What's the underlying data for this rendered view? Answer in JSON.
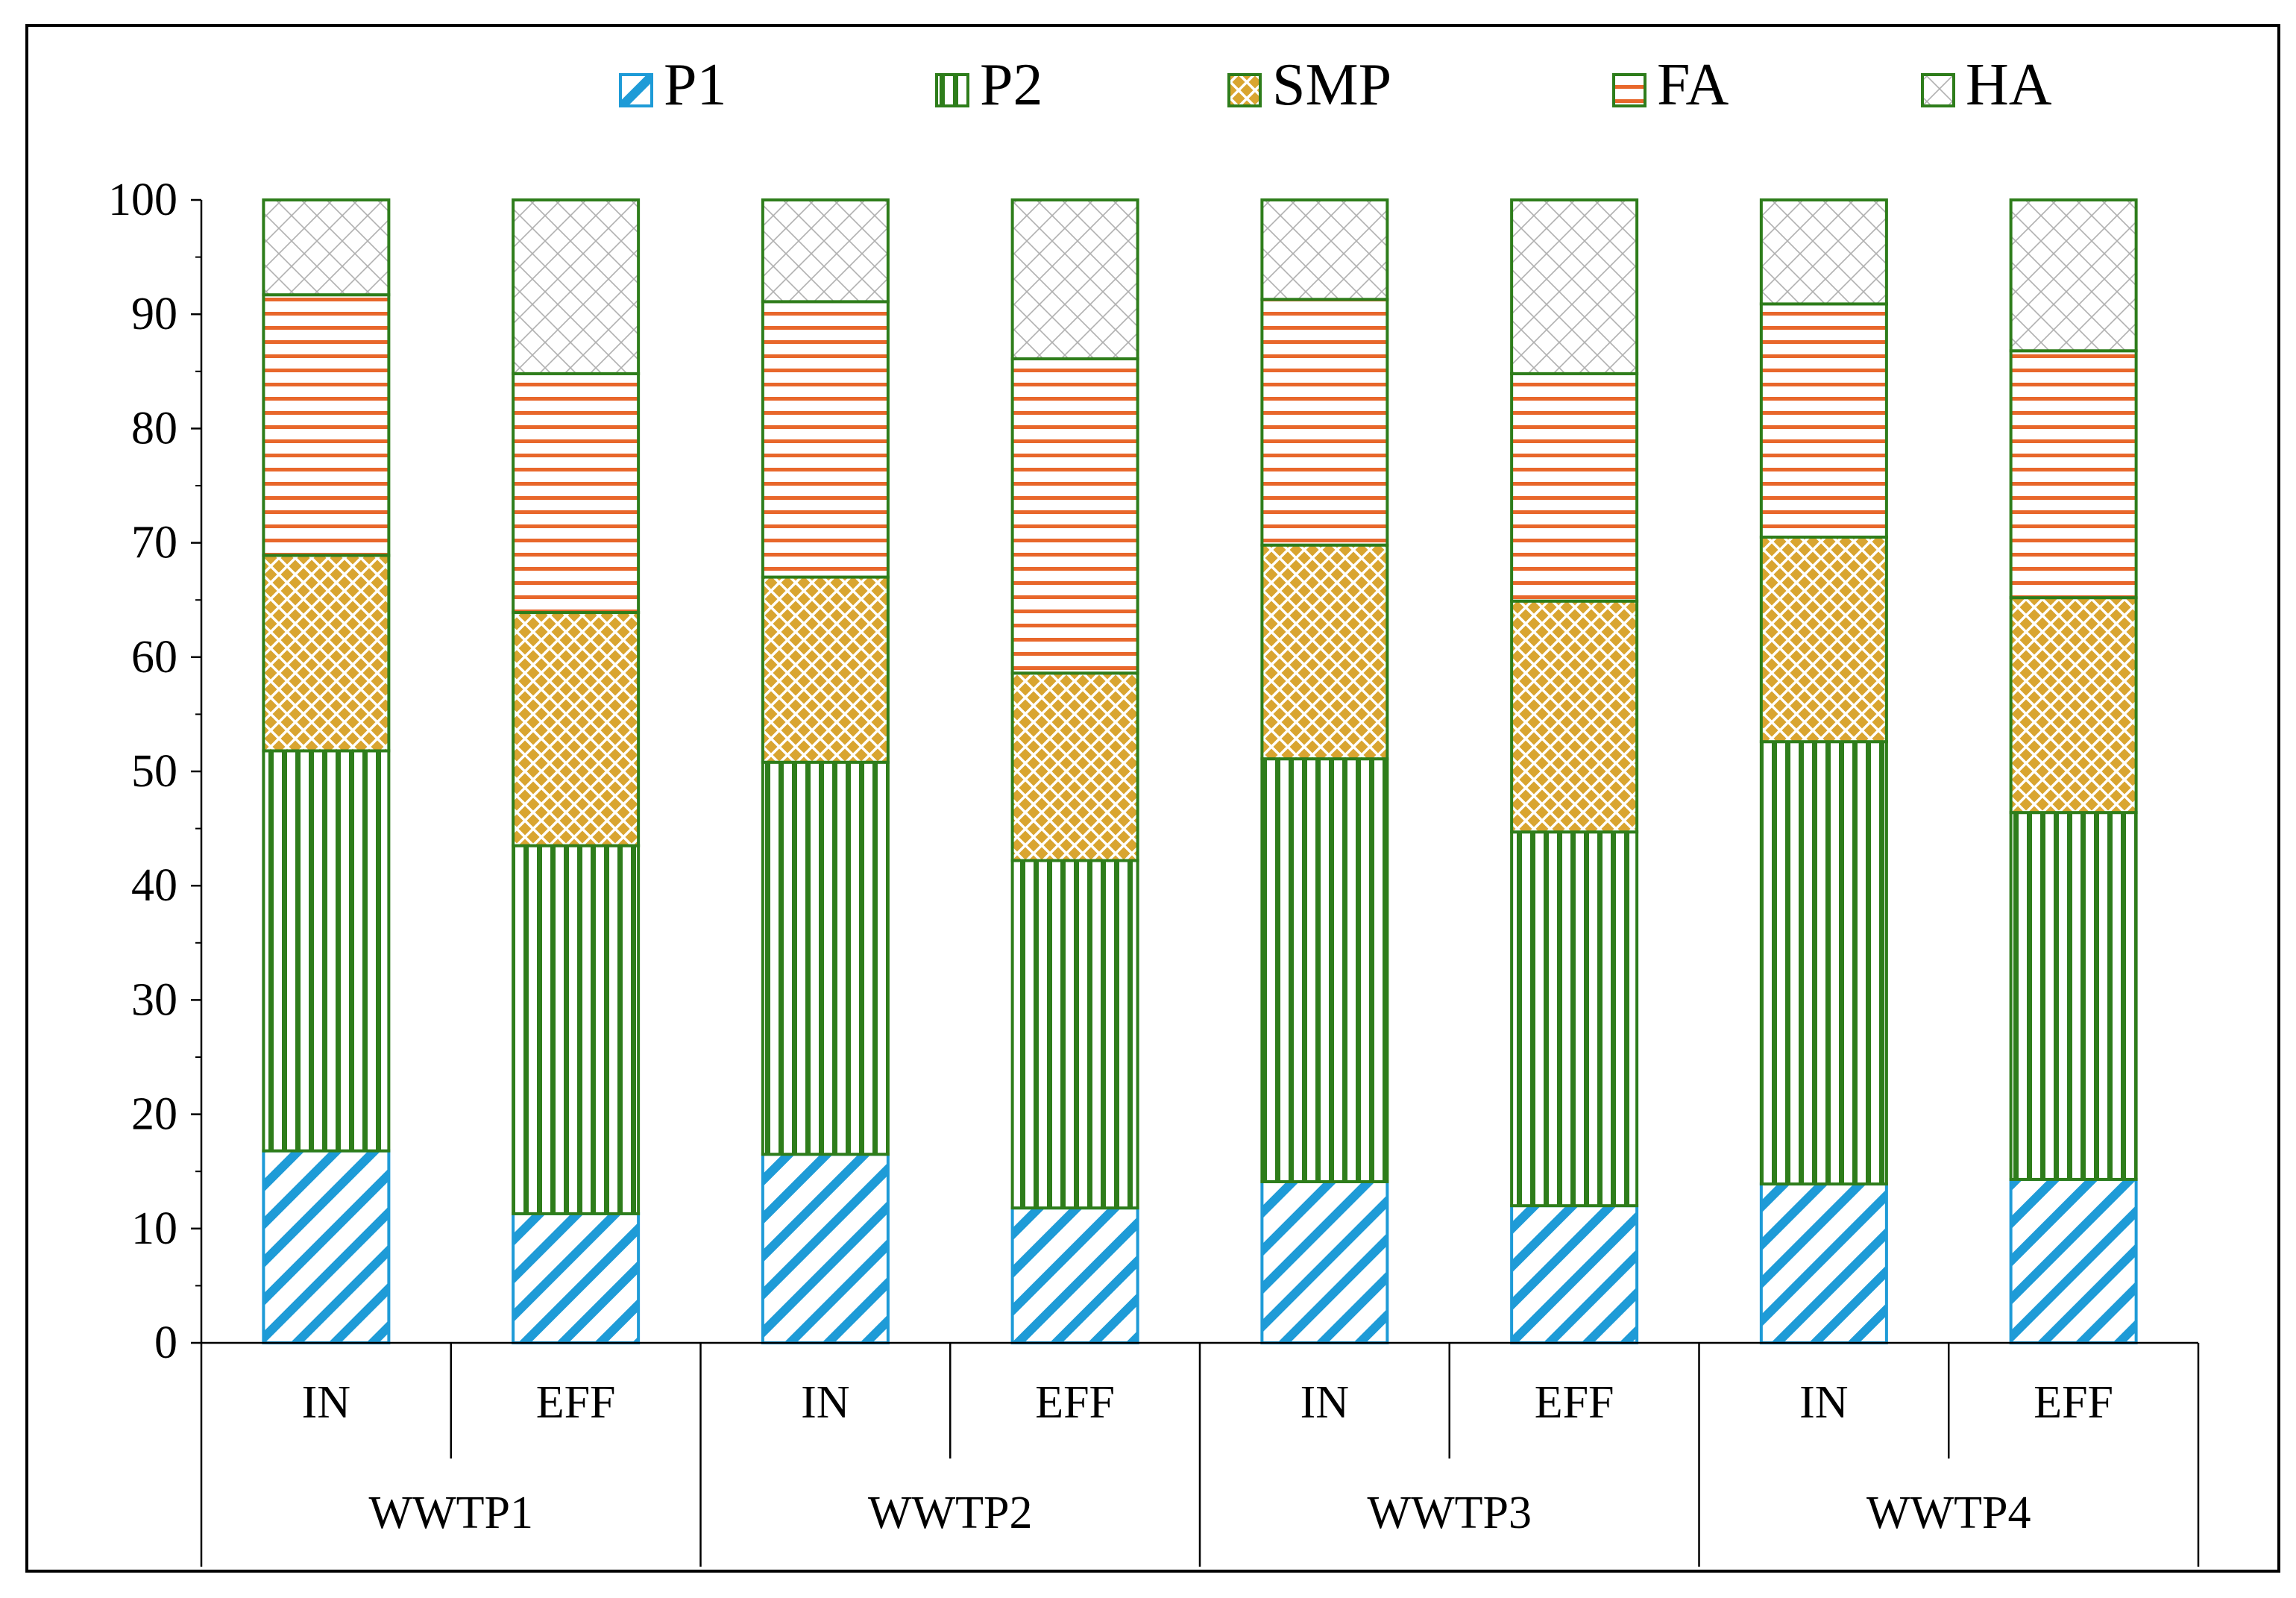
{
  "chart_data": {
    "type": "bar",
    "stacked": true,
    "title": "",
    "xlabel": "",
    "ylabel": "",
    "ylim": [
      0,
      100
    ],
    "yticks": [
      0,
      10,
      20,
      30,
      40,
      50,
      60,
      70,
      80,
      90,
      100
    ],
    "groups": [
      "WWTP1",
      "WWTP2",
      "WWTP3",
      "WWTP4"
    ],
    "categories": [
      "IN",
      "EFF",
      "IN",
      "EFF",
      "IN",
      "EFF",
      "IN",
      "EFF"
    ],
    "legend_position": "top",
    "series": [
      {
        "name": "P1",
        "color": "#1E9BD7",
        "pattern": "diagonal",
        "values": [
          16.8,
          11.3,
          16.5,
          11.8,
          14.1,
          12.0,
          13.9,
          14.3
        ]
      },
      {
        "name": "P2",
        "color": "#2E7D1B",
        "pattern": "vertical",
        "values": [
          35.0,
          32.2,
          34.3,
          30.4,
          37.0,
          32.7,
          38.7,
          32.1
        ]
      },
      {
        "name": "SMP",
        "color": "#D9A530",
        "pattern": "crosshatch",
        "values": [
          17.1,
          20.4,
          16.2,
          16.4,
          18.7,
          20.2,
          17.9,
          18.8
        ]
      },
      {
        "name": "FA",
        "color": "#E8672B",
        "pattern": "horizontal",
        "values": [
          22.8,
          20.9,
          24.1,
          27.5,
          21.5,
          19.9,
          20.4,
          21.6
        ]
      },
      {
        "name": "HA",
        "color": "#BFBFBF",
        "pattern": "lattice",
        "values": [
          8.3,
          15.2,
          8.9,
          13.9,
          8.7,
          15.2,
          9.1,
          13.2
        ]
      }
    ]
  }
}
